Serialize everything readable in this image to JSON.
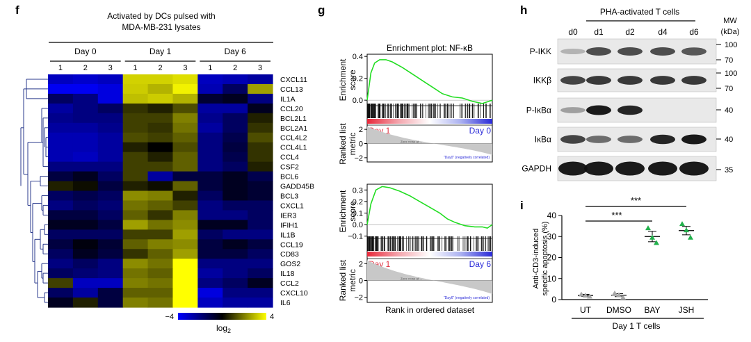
{
  "panel_f": {
    "letter": "f",
    "title_line1": "Activated by DCs pulsed with",
    "title_line2": "MDA-MB-231 lysates",
    "groups": [
      "Day 0",
      "Day 1",
      "Day 6"
    ],
    "replicates": [
      "1",
      "2",
      "3",
      "1",
      "2",
      "3",
      "1",
      "2",
      "3"
    ],
    "genes": [
      "CXCL11",
      "CCL13",
      "IL1A",
      "CCL20",
      "BCL2L1",
      "BCL2A1",
      "CCL4L2",
      "CCL4L1",
      "CCL4",
      "CSF2",
      "BCL6",
      "GADD45B",
      "BCL3",
      "CXCL1",
      "IER3",
      "IFIH1",
      "IL1B",
      "CCL19",
      "CD83",
      "GOS2",
      "IL18",
      "CCL2",
      "CXCL10",
      "IL6"
    ],
    "matrix": [
      [
        -3.0,
        -3.2,
        -3.0,
        3.3,
        3.3,
        3.5,
        -3.0,
        -2.8,
        -2.5
      ],
      [
        -3.8,
        -3.8,
        -3.5,
        3.2,
        2.8,
        3.8,
        -2.8,
        -1.5,
        2.5
      ],
      [
        -1.5,
        -2.0,
        -3.5,
        3.0,
        3.2,
        2.8,
        -0.8,
        -0.5,
        -2.0
      ],
      [
        -2.5,
        -2.0,
        -1.5,
        0.8,
        0.5,
        1.2,
        -2.5,
        -2.5,
        -0.5
      ],
      [
        -2.2,
        -2.0,
        -2.0,
        1.0,
        1.0,
        2.0,
        -2.2,
        -1.5,
        0.5
      ],
      [
        -2.5,
        -2.5,
        -2.2,
        1.0,
        0.8,
        1.8,
        -2.5,
        -1.5,
        0.8
      ],
      [
        -2.8,
        -2.8,
        -2.5,
        1.2,
        1.0,
        1.5,
        -2.0,
        -1.2,
        1.2
      ],
      [
        -2.8,
        -2.8,
        -2.5,
        0.5,
        0.0,
        1.2,
        -2.0,
        -1.0,
        0.8
      ],
      [
        -2.8,
        -3.0,
        -2.5,
        1.0,
        0.5,
        1.5,
        -2.0,
        -1.2,
        0.8
      ],
      [
        -2.0,
        -2.0,
        -2.0,
        1.0,
        1.0,
        1.5,
        -2.0,
        -1.5,
        0.5
      ],
      [
        -1.0,
        -0.5,
        -1.5,
        1.0,
        -2.5,
        -1.0,
        -1.0,
        -0.5,
        -1.2
      ],
      [
        0.5,
        0.2,
        -1.0,
        0.5,
        0.2,
        1.5,
        -1.0,
        -0.5,
        -0.8
      ],
      [
        -1.5,
        -1.2,
        -1.5,
        2.2,
        2.0,
        0.5,
        -1.5,
        -0.5,
        -0.8
      ],
      [
        -2.0,
        -1.5,
        -1.8,
        1.8,
        1.5,
        1.0,
        -2.0,
        -1.5,
        -1.5
      ],
      [
        -1.0,
        -1.0,
        -1.5,
        1.5,
        0.8,
        2.0,
        -2.0,
        -2.0,
        -1.5
      ],
      [
        -0.5,
        -0.5,
        -1.0,
        2.5,
        1.8,
        2.2,
        -0.5,
        -0.5,
        -1.5
      ],
      [
        -1.5,
        -1.5,
        -1.5,
        1.0,
        1.0,
        2.5,
        -1.5,
        -2.0,
        -2.0
      ],
      [
        -1.0,
        -0.2,
        -0.8,
        1.5,
        2.0,
        2.2,
        -1.0,
        -0.5,
        -1.0
      ],
      [
        -1.5,
        -0.5,
        -1.0,
        0.8,
        1.5,
        2.5,
        -1.0,
        -1.0,
        -1.5
      ],
      [
        -2.0,
        -1.5,
        -2.0,
        2.2,
        1.8,
        4.0,
        -2.0,
        -2.0,
        -2.0
      ],
      [
        -1.5,
        -1.8,
        -2.0,
        1.8,
        1.5,
        4.0,
        -2.5,
        -2.0,
        -1.5
      ],
      [
        1.0,
        -3.0,
        -3.0,
        2.0,
        1.8,
        4.0,
        -2.0,
        -1.5,
        -0.5
      ],
      [
        -1.5,
        -2.5,
        -1.0,
        1.5,
        1.5,
        4.0,
        -3.5,
        -2.0,
        -2.0
      ],
      [
        -0.5,
        0.5,
        -1.0,
        2.0,
        1.8,
        4.0,
        -3.0,
        -2.5,
        -2.5
      ]
    ],
    "scale_min": "−4",
    "scale_max": "4",
    "scale_label": "log",
    "scale_label_sub": "2"
  },
  "panel_g": {
    "letter": "g",
    "plots": [
      {
        "title": "Enrichment plot: NF-κB",
        "ylabel_es": [
          "Enrichment",
          "score"
        ],
        "es_ticks": [
          "0.4",
          "0.2",
          "0.0"
        ],
        "es_curve": [
          [
            0,
            0.0
          ],
          [
            3,
            0.25
          ],
          [
            6,
            0.34
          ],
          [
            10,
            0.37
          ],
          [
            15,
            0.37
          ],
          [
            20,
            0.35
          ],
          [
            28,
            0.3
          ],
          [
            36,
            0.24
          ],
          [
            44,
            0.18
          ],
          [
            52,
            0.12
          ],
          [
            60,
            0.06
          ],
          [
            68,
            0.03
          ],
          [
            76,
            0.02
          ],
          [
            84,
            -0.01
          ],
          [
            92,
            -0.03
          ],
          [
            100,
            0.0
          ]
        ],
        "red_label": "Day 1",
        "blue_label": "Day 0",
        "zero_label": "Zero cross at ...",
        "corr_label": "\"Day0\" (negatively correlated)",
        "ylabel_metric": [
          "Ranked list",
          "metric"
        ],
        "metric_ticks": [
          "2",
          "0",
          "−2"
        ]
      },
      {
        "title": "",
        "ylabel_es": [
          "Enrichment",
          "score"
        ],
        "es_ticks": [
          "0.3",
          "0.2",
          "0.1",
          "0.0",
          "−0.1"
        ],
        "es_curve": [
          [
            0,
            0.0
          ],
          [
            3,
            0.18
          ],
          [
            7,
            0.3
          ],
          [
            12,
            0.33
          ],
          [
            18,
            0.32
          ],
          [
            26,
            0.29
          ],
          [
            34,
            0.25
          ],
          [
            42,
            0.2
          ],
          [
            50,
            0.15
          ],
          [
            58,
            0.1
          ],
          [
            64,
            0.05
          ],
          [
            70,
            0.02
          ],
          [
            78,
            -0.01
          ],
          [
            86,
            -0.02
          ],
          [
            92,
            -0.02
          ],
          [
            96,
            -0.03
          ],
          [
            100,
            0.0
          ]
        ],
        "red_label": "Day 1",
        "blue_label": "Day 6",
        "zero_label": "Zero cross at ...",
        "corr_label": "\"Day6\" (negatively correlated)",
        "ylabel_metric": [
          "Ranked list",
          "metric"
        ],
        "metric_ticks": [
          "2",
          "0",
          "−2"
        ]
      }
    ],
    "xlabel": "Rank in ordered dataset"
  },
  "panel_h": {
    "letter": "h",
    "header": "PHA-activated T cells",
    "lanes": [
      "d0",
      "d1",
      "d2",
      "d4",
      "d6"
    ],
    "mw_label": [
      "MW",
      "(kDa)"
    ],
    "blots": [
      {
        "label": "P-IKK",
        "mw": [
          "100",
          "70"
        ],
        "intensity": [
          0.25,
          0.75,
          0.75,
          0.75,
          0.7
        ]
      },
      {
        "label": "IKKβ",
        "mw": [
          "100",
          "70"
        ],
        "intensity": [
          0.8,
          0.85,
          0.85,
          0.85,
          0.85
        ]
      },
      {
        "label": "P-IκBα",
        "mw": [
          "40"
        ],
        "intensity": [
          0.35,
          1.0,
          0.95,
          0.0,
          0.0
        ]
      },
      {
        "label": "IκBα",
        "mw": [
          "40"
        ],
        "intensity": [
          0.8,
          0.6,
          0.6,
          0.95,
          1.0
        ]
      },
      {
        "label": "GAPDH",
        "mw": [
          "35"
        ],
        "intensity": [
          1.0,
          1.0,
          1.0,
          1.0,
          1.0
        ]
      }
    ]
  },
  "panel_i": {
    "letter": "i",
    "significance": [
      "***",
      "***"
    ],
    "ylabel": [
      "Anti-CD3-induced",
      "specific apoptosis (%)"
    ],
    "xlabel": "Day 1 T cells",
    "chart_data": {
      "type": "scatter",
      "categories": [
        "UT",
        "DMSO",
        "BAY",
        "JSH"
      ],
      "ylim": [
        0,
        40
      ],
      "yticks": [
        "0",
        "10",
        "20",
        "30",
        "40"
      ],
      "series": [
        {
          "category": "UT",
          "color": "#a8a8a8",
          "points": [
            2.5,
            1.5,
            2.0
          ],
          "mean": 2.0,
          "sem": 0.5
        },
        {
          "category": "DMSO",
          "color": "#a8a8a8",
          "points": [
            3.0,
            1.0,
            2.2
          ],
          "mean": 2.1,
          "sem": 0.7
        },
        {
          "category": "BAY",
          "color": "#22b14c",
          "points": [
            34.0,
            27.0,
            29.5
          ],
          "mean": 30.0,
          "sem": 2.5
        },
        {
          "category": "JSH",
          "color": "#22b14c",
          "points": [
            36.0,
            29.5,
            33.0
          ],
          "mean": 32.8,
          "sem": 2.0
        }
      ]
    }
  }
}
